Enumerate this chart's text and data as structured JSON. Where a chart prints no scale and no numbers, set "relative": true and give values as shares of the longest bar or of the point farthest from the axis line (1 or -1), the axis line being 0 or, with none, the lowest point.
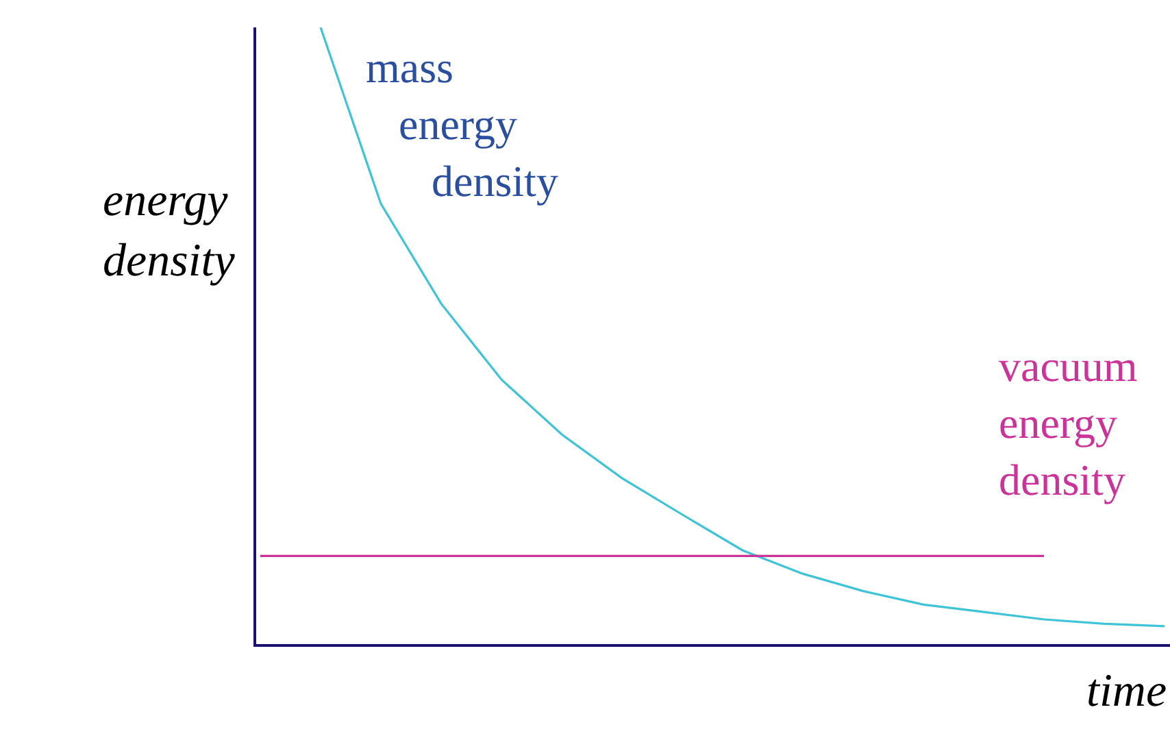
{
  "chart_data": {
    "type": "line",
    "relative": true,
    "xlabel": "time",
    "ylabel": "energy density",
    "categories": [
      null,
      null,
      null,
      null,
      null,
      null,
      null,
      null,
      null,
      null,
      null,
      null,
      null,
      null,
      null,
      null
    ],
    "series": [
      {
        "name": "mass energy density",
        "color": "#3ec4d6",
        "values": [
          null,
          1,
          0.714,
          0.552,
          0.429,
          0.34,
          0.269,
          0.21,
          0.152,
          0.114,
          0.086,
          0.064,
          0.052,
          0.04,
          0.033,
          0.029
        ]
      },
      {
        "name": "vacuum energy density",
        "color": "#cc3399",
        "values": [
          0.143,
          0.143,
          0.143,
          0.143,
          0.143,
          0.143,
          0.143,
          0.143,
          0.143,
          0.143,
          0.143,
          0.143,
          0.143,
          0.143,
          null,
          null
        ]
      }
    ],
    "legend": false,
    "marker": "none",
    "line_style": "solid"
  }
}
